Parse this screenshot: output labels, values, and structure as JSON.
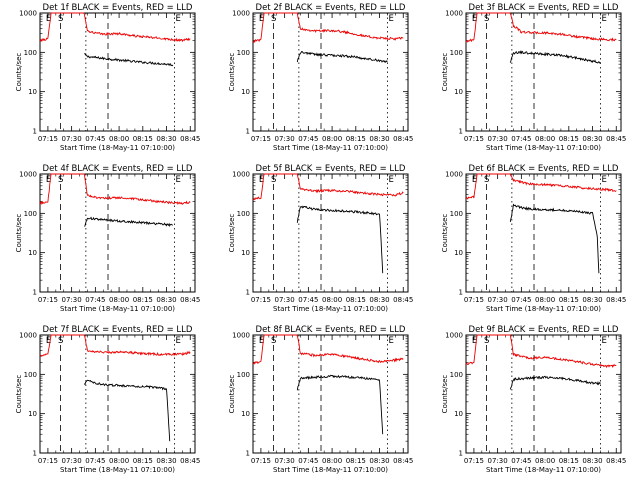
{
  "colors": {
    "events": "#000000",
    "lld": "#ee0000",
    "background": "#ffffff"
  },
  "markers": {
    "e": "E",
    "s": "S"
  },
  "shared_axes": {
    "ylabel": "Counts/sec",
    "xlabel": "Start Time (18-May-11 07:10:00)",
    "xticks": [
      "07:15",
      "07:30",
      "07:45",
      "08:00",
      "08:15",
      "08:30",
      "08:45"
    ],
    "yticks": [
      "1",
      "10",
      "100",
      "1000"
    ]
  },
  "chart_data": [
    {
      "type": "line",
      "title": "Det 1f BLACK = Events, RED = LLD",
      "xlabel": "Start Time (18-May-11 07:10:00)",
      "ylabel": "Counts/sec",
      "ylim": [
        1,
        1000
      ],
      "yscale": "log",
      "xlim": [
        "07:10",
        "08:48"
      ],
      "xticks": [
        "07:15",
        "07:30",
        "07:45",
        "08:00",
        "08:15",
        "08:30",
        "08:45"
      ],
      "series": [
        {
          "name": "BLACK = Events",
          "x": [
            "07:38",
            "07:40",
            "07:45",
            "07:50",
            "08:00",
            "08:10",
            "08:20",
            "08:30",
            "08:34"
          ],
          "y": [
            90,
            78,
            74,
            70,
            64,
            58,
            54,
            50,
            48
          ]
        },
        {
          "name": "RED = LLD",
          "x": [
            "07:10",
            "07:15",
            "07:17",
            "07:38",
            "07:40",
            "07:45",
            "07:50",
            "08:00",
            "08:10",
            "08:20",
            "08:30",
            "08:40",
            "08:45"
          ],
          "y": [
            200,
            220,
            1000,
            1000,
            350,
            310,
            290,
            300,
            260,
            240,
            220,
            200,
            220
          ]
        }
      ]
    },
    {
      "type": "line",
      "title": "Det 2f BLACK = Events, RED = LLD",
      "xlabel": "Start Time (18-May-11 07:10:00)",
      "ylabel": "Counts/sec",
      "ylim": [
        1,
        1000
      ],
      "yscale": "log",
      "xlim": [
        "07:10",
        "08:48"
      ],
      "xticks": [
        "07:15",
        "07:30",
        "07:45",
        "08:00",
        "08:15",
        "08:30",
        "08:45"
      ],
      "series": [
        {
          "name": "BLACK = Events",
          "x": [
            "07:38",
            "07:40",
            "07:45",
            "07:50",
            "08:00",
            "08:10",
            "08:20",
            "08:30",
            "08:35"
          ],
          "y": [
            60,
            100,
            95,
            88,
            84,
            80,
            70,
            62,
            58
          ]
        },
        {
          "name": "RED = LLD",
          "x": [
            "07:10",
            "07:15",
            "07:17",
            "07:38",
            "07:40",
            "07:45",
            "07:50",
            "08:00",
            "08:10",
            "08:20",
            "08:30",
            "08:40",
            "08:45"
          ],
          "y": [
            190,
            210,
            1000,
            1000,
            400,
            370,
            350,
            360,
            320,
            260,
            230,
            220,
            230
          ]
        }
      ]
    },
    {
      "type": "line",
      "title": "Det 3f BLACK = Events, RED = LLD",
      "xlabel": "Start Time (18-May-11 07:10:00)",
      "ylabel": "Counts/sec",
      "ylim": [
        1,
        1000
      ],
      "yscale": "log",
      "xlim": [
        "07:10",
        "08:48"
      ],
      "xticks": [
        "07:15",
        "07:30",
        "07:45",
        "08:00",
        "08:15",
        "08:30",
        "08:45"
      ],
      "series": [
        {
          "name": "BLACK = Events",
          "x": [
            "07:38",
            "07:40",
            "07:45",
            "07:50",
            "08:00",
            "08:10",
            "08:20",
            "08:30",
            "08:35"
          ],
          "y": [
            55,
            95,
            100,
            96,
            90,
            84,
            72,
            60,
            56
          ]
        },
        {
          "name": "RED = LLD",
          "x": [
            "07:10",
            "07:15",
            "07:17",
            "07:38",
            "07:40",
            "07:45",
            "07:50",
            "08:00",
            "08:10",
            "08:20",
            "08:30",
            "08:40",
            "08:45"
          ],
          "y": [
            190,
            210,
            1000,
            1000,
            480,
            330,
            320,
            310,
            290,
            250,
            220,
            210,
            210
          ]
        }
      ]
    },
    {
      "type": "line",
      "title": "Det 4f BLACK = Events, RED = LLD",
      "xlabel": "Start Time (18-May-11 07:10:00)",
      "ylabel": "Counts/sec",
      "ylim": [
        1,
        1000
      ],
      "yscale": "log",
      "xlim": [
        "07:10",
        "08:48"
      ],
      "xticks": [
        "07:15",
        "07:30",
        "07:45",
        "08:00",
        "08:15",
        "08:30",
        "08:45"
      ],
      "series": [
        {
          "name": "BLACK = Events",
          "x": [
            "07:38",
            "07:40",
            "07:45",
            "07:50",
            "08:00",
            "08:10",
            "08:20",
            "08:30",
            "08:34"
          ],
          "y": [
            45,
            75,
            72,
            68,
            64,
            60,
            56,
            52,
            50
          ]
        },
        {
          "name": "RED = LLD",
          "x": [
            "07:10",
            "07:15",
            "07:17",
            "07:38",
            "07:40",
            "07:45",
            "07:50",
            "08:00",
            "08:10",
            "08:20",
            "08:30",
            "08:40",
            "08:45"
          ],
          "y": [
            180,
            200,
            1000,
            1000,
            280,
            260,
            240,
            250,
            230,
            210,
            190,
            180,
            190
          ]
        }
      ]
    },
    {
      "type": "line",
      "title": "Det 5f BLACK = Events, RED = LLD",
      "xlabel": "Start Time (18-May-11 07:10:00)",
      "ylabel": "Counts/sec",
      "ylim": [
        1,
        1000
      ],
      "yscale": "log",
      "xlim": [
        "07:10",
        "08:48"
      ],
      "xticks": [
        "07:15",
        "07:30",
        "07:45",
        "08:00",
        "08:15",
        "08:30",
        "08:45"
      ],
      "series": [
        {
          "name": "BLACK = Events",
          "x": [
            "07:38",
            "07:40",
            "07:45",
            "07:50",
            "08:00",
            "08:10",
            "08:20",
            "08:30",
            "08:31",
            "08:32"
          ],
          "y": [
            60,
            150,
            135,
            125,
            118,
            112,
            105,
            95,
            20,
            3
          ]
        },
        {
          "name": "RED = LLD",
          "x": [
            "07:10",
            "07:15",
            "07:17",
            "07:38",
            "07:40",
            "07:45",
            "07:50",
            "08:00",
            "08:10",
            "08:20",
            "08:30",
            "08:40",
            "08:45"
          ],
          "y": [
            230,
            250,
            1000,
            1000,
            420,
            390,
            370,
            380,
            360,
            330,
            300,
            290,
            330
          ]
        }
      ]
    },
    {
      "type": "line",
      "title": "Det 6f BLACK = Events, RED = LLD",
      "xlabel": "Start Time (18-May-11 07:10:00)",
      "ylabel": "Counts/sec",
      "ylim": [
        1,
        1000
      ],
      "yscale": "log",
      "xlim": [
        "07:10",
        "08:48"
      ],
      "xticks": [
        "07:15",
        "07:30",
        "07:45",
        "08:00",
        "08:15",
        "08:30",
        "08:45"
      ],
      "series": [
        {
          "name": "BLACK = Events",
          "x": [
            "07:38",
            "07:40",
            "07:45",
            "07:50",
            "08:00",
            "08:10",
            "08:20",
            "08:30",
            "08:33",
            "08:34"
          ],
          "y": [
            60,
            160,
            140,
            130,
            125,
            120,
            112,
            100,
            25,
            3
          ]
        },
        {
          "name": "RED = LLD",
          "x": [
            "07:10",
            "07:15",
            "07:17",
            "07:38",
            "07:40",
            "07:45",
            "07:50",
            "08:00",
            "08:10",
            "08:20",
            "08:30",
            "08:40",
            "08:45"
          ],
          "y": [
            240,
            260,
            1000,
            1000,
            700,
            620,
            560,
            540,
            500,
            460,
            420,
            400,
            380
          ]
        }
      ]
    },
    {
      "type": "line",
      "title": "Det 7f BLACK = Events, RED = LLD",
      "xlabel": "Start Time (18-May-11 07:10:00)",
      "ylabel": "Counts/sec",
      "ylim": [
        1,
        1000
      ],
      "yscale": "log",
      "xlim": [
        "07:10",
        "08:48"
      ],
      "xticks": [
        "07:15",
        "07:30",
        "07:45",
        "08:00",
        "08:15",
        "08:30",
        "08:45"
      ],
      "series": [
        {
          "name": "BLACK = Events",
          "x": [
            "07:38",
            "07:40",
            "07:45",
            "07:50",
            "08:00",
            "08:10",
            "08:20",
            "08:30",
            "08:31",
            "08:32"
          ],
          "y": [
            55,
            70,
            60,
            55,
            52,
            50,
            48,
            42,
            10,
            2
          ]
        },
        {
          "name": "RED = LLD",
          "x": [
            "07:10",
            "07:15",
            "07:17",
            "07:38",
            "07:40",
            "07:45",
            "07:50",
            "08:00",
            "08:10",
            "08:20",
            "08:30",
            "08:40",
            "08:45"
          ],
          "y": [
            300,
            320,
            1000,
            1000,
            400,
            380,
            360,
            370,
            350,
            330,
            320,
            330,
            360
          ]
        }
      ]
    },
    {
      "type": "line",
      "title": "Det 8f BLACK = Events, RED = LLD",
      "xlabel": "Start Time (18-May-11 07:10:00)",
      "ylabel": "Counts/sec",
      "ylim": [
        1,
        1000
      ],
      "yscale": "log",
      "xlim": [
        "07:10",
        "08:48"
      ],
      "xticks": [
        "07:15",
        "07:30",
        "07:45",
        "08:00",
        "08:15",
        "08:30",
        "08:45"
      ],
      "series": [
        {
          "name": "BLACK = Events",
          "x": [
            "07:38",
            "07:40",
            "07:45",
            "07:50",
            "08:00",
            "08:10",
            "08:20",
            "08:30",
            "08:31",
            "08:32"
          ],
          "y": [
            40,
            80,
            82,
            85,
            90,
            85,
            80,
            70,
            15,
            3
          ]
        },
        {
          "name": "RED = LLD",
          "x": [
            "07:10",
            "07:15",
            "07:17",
            "07:38",
            "07:40",
            "07:45",
            "07:50",
            "08:00",
            "08:10",
            "08:20",
            "08:30",
            "08:40",
            "08:45"
          ],
          "y": [
            190,
            210,
            1000,
            1000,
            340,
            320,
            300,
            330,
            280,
            240,
            210,
            230,
            250
          ]
        }
      ]
    },
    {
      "type": "line",
      "title": "Det 9f BLACK = Events, RED = LLD",
      "xlabel": "Start Time (18-May-11 07:10:00)",
      "ylabel": "Counts/sec",
      "ylim": [
        1,
        1000
      ],
      "yscale": "log",
      "xlim": [
        "07:10",
        "08:48"
      ],
      "xticks": [
        "07:15",
        "07:30",
        "07:45",
        "08:00",
        "08:15",
        "08:30",
        "08:45"
      ],
      "series": [
        {
          "name": "BLACK = Events",
          "x": [
            "07:38",
            "07:40",
            "07:45",
            "07:50",
            "08:00",
            "08:10",
            "08:20",
            "08:30",
            "08:35"
          ],
          "y": [
            40,
            75,
            78,
            80,
            84,
            80,
            70,
            60,
            58
          ]
        },
        {
          "name": "RED = LLD",
          "x": [
            "07:10",
            "07:15",
            "07:17",
            "07:38",
            "07:40",
            "07:45",
            "07:50",
            "08:00",
            "08:10",
            "08:20",
            "08:30",
            "08:40",
            "08:45"
          ],
          "y": [
            180,
            200,
            1000,
            1000,
            320,
            290,
            260,
            270,
            240,
            210,
            180,
            160,
            170
          ]
        }
      ]
    }
  ]
}
